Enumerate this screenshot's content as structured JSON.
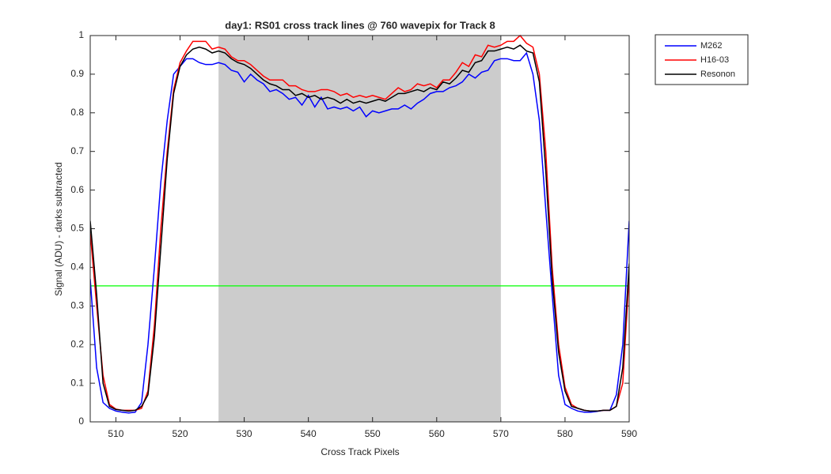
{
  "chart_data": {
    "type": "line",
    "title": "day1: RS01  cross track lines @ 760 wavepix for Track 8",
    "xlabel": "Cross Track Pixels",
    "ylabel": "Signal (ADU) - darks subtracted",
    "x": [
      506,
      507,
      508,
      509,
      510,
      511,
      512,
      513,
      514,
      515,
      516,
      517,
      518,
      519,
      520,
      521,
      522,
      523,
      524,
      525,
      526,
      527,
      528,
      529,
      530,
      531,
      532,
      533,
      534,
      535,
      536,
      537,
      538,
      539,
      540,
      541,
      542,
      543,
      544,
      545,
      546,
      547,
      548,
      549,
      550,
      551,
      552,
      553,
      554,
      555,
      556,
      557,
      558,
      559,
      560,
      561,
      562,
      563,
      564,
      565,
      566,
      567,
      568,
      569,
      570,
      571,
      572,
      573,
      574,
      575,
      576,
      577,
      578,
      579,
      580,
      581,
      582,
      583,
      584,
      585,
      586,
      587,
      588,
      589,
      590
    ],
    "series": [
      {
        "name": "M262",
        "color": "#0000ff",
        "values": [
          0.37,
          0.14,
          0.05,
          0.035,
          0.028,
          0.025,
          0.023,
          0.025,
          0.05,
          0.2,
          0.4,
          0.62,
          0.78,
          0.9,
          0.92,
          0.94,
          0.94,
          0.93,
          0.925,
          0.925,
          0.93,
          0.925,
          0.91,
          0.905,
          0.88,
          0.9,
          0.885,
          0.875,
          0.855,
          0.86,
          0.85,
          0.835,
          0.84,
          0.82,
          0.845,
          0.815,
          0.84,
          0.81,
          0.815,
          0.81,
          0.815,
          0.805,
          0.815,
          0.79,
          0.805,
          0.8,
          0.805,
          0.81,
          0.81,
          0.82,
          0.81,
          0.825,
          0.835,
          0.85,
          0.855,
          0.855,
          0.865,
          0.87,
          0.88,
          0.9,
          0.89,
          0.905,
          0.91,
          0.935,
          0.94,
          0.94,
          0.935,
          0.935,
          0.955,
          0.9,
          0.78,
          0.55,
          0.33,
          0.12,
          0.045,
          0.035,
          0.028,
          0.025,
          0.025,
          0.027,
          0.03,
          0.03,
          0.07,
          0.2,
          0.52
        ]
      },
      {
        "name": "H16-03",
        "color": "#ff0000",
        "values": [
          0.49,
          0.3,
          0.12,
          0.045,
          0.033,
          0.03,
          0.03,
          0.03,
          0.035,
          0.08,
          0.25,
          0.5,
          0.7,
          0.86,
          0.93,
          0.96,
          0.985,
          0.985,
          0.985,
          0.965,
          0.97,
          0.965,
          0.945,
          0.935,
          0.935,
          0.925,
          0.91,
          0.895,
          0.885,
          0.885,
          0.885,
          0.87,
          0.87,
          0.86,
          0.855,
          0.855,
          0.86,
          0.86,
          0.855,
          0.845,
          0.85,
          0.84,
          0.845,
          0.84,
          0.845,
          0.84,
          0.835,
          0.85,
          0.865,
          0.855,
          0.86,
          0.875,
          0.87,
          0.875,
          0.865,
          0.885,
          0.885,
          0.905,
          0.93,
          0.92,
          0.95,
          0.945,
          0.975,
          0.97,
          0.975,
          0.985,
          0.985,
          1.0,
          0.98,
          0.97,
          0.9,
          0.7,
          0.4,
          0.2,
          0.09,
          0.045,
          0.035,
          0.03,
          0.028,
          0.028,
          0.03,
          0.03,
          0.04,
          0.1,
          0.38
        ]
      },
      {
        "name": "Resonon",
        "color": "#000000",
        "values": [
          0.52,
          0.33,
          0.1,
          0.04,
          0.032,
          0.03,
          0.028,
          0.03,
          0.04,
          0.07,
          0.22,
          0.45,
          0.68,
          0.85,
          0.92,
          0.95,
          0.965,
          0.97,
          0.965,
          0.955,
          0.96,
          0.955,
          0.94,
          0.93,
          0.925,
          0.915,
          0.9,
          0.885,
          0.875,
          0.87,
          0.86,
          0.86,
          0.845,
          0.85,
          0.84,
          0.845,
          0.835,
          0.84,
          0.835,
          0.825,
          0.835,
          0.825,
          0.83,
          0.825,
          0.83,
          0.835,
          0.83,
          0.84,
          0.85,
          0.85,
          0.855,
          0.86,
          0.855,
          0.865,
          0.86,
          0.88,
          0.875,
          0.89,
          0.91,
          0.905,
          0.93,
          0.935,
          0.96,
          0.96,
          0.965,
          0.97,
          0.965,
          0.975,
          0.96,
          0.955,
          0.88,
          0.65,
          0.37,
          0.18,
          0.08,
          0.04,
          0.035,
          0.03,
          0.028,
          0.028,
          0.03,
          0.03,
          0.04,
          0.14,
          0.41
        ]
      }
    ],
    "shaded_region": [
      526,
      570
    ],
    "shaded_color": "#cccccc",
    "reference_line": 0.352,
    "reference_color": "#00ff00",
    "xlim": [
      506,
      590
    ],
    "xticks": [
      510,
      520,
      530,
      540,
      550,
      560,
      570,
      580,
      590
    ],
    "ylim": [
      0,
      1
    ],
    "yticks": [
      0,
      0.1,
      0.2,
      0.3,
      0.4,
      0.5,
      0.6,
      0.7,
      0.8,
      0.9,
      1
    ],
    "legend": "outside-top-right"
  }
}
